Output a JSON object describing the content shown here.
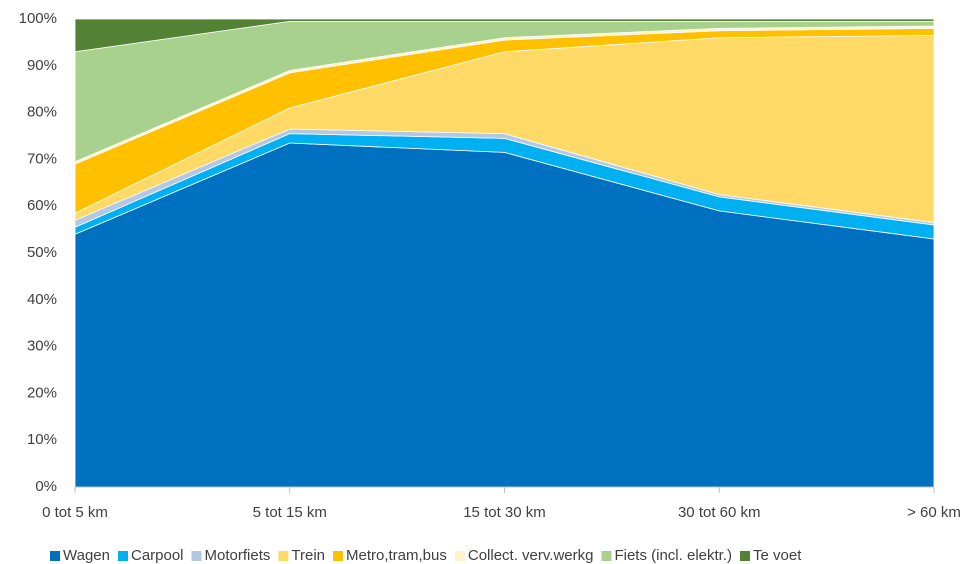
{
  "chart_data": {
    "type": "area",
    "stacked": true,
    "categories": [
      "0 tot 5 km",
      "5 tot 15 km",
      "15 tot 30 km",
      "30 tot 60 km",
      "> 60 km"
    ],
    "series": [
      {
        "name": "Wagen",
        "color": "#0070c0",
        "values": [
          54,
          73.5,
          71.5,
          59,
          53
        ]
      },
      {
        "name": "Carpool",
        "color": "#00b0f0",
        "values": [
          1.5,
          2,
          3,
          3,
          3
        ]
      },
      {
        "name": "Motorfiets",
        "color": "#b4c7e7",
        "values": [
          1.5,
          1,
          1,
          0.5,
          0.5
        ]
      },
      {
        "name": "Trein",
        "color": "#ffd966",
        "values": [
          1.5,
          4.5,
          17.5,
          33.5,
          40
        ]
      },
      {
        "name": "Metro,tram,bus",
        "color": "#ffc000",
        "values": [
          10.5,
          7.5,
          2.5,
          1.5,
          1.5
        ]
      },
      {
        "name": "Collect. verv.werkg",
        "color": "#fff2cc",
        "values": [
          0.5,
          0.5,
          0.5,
          0.5,
          0.5
        ]
      },
      {
        "name": "Fiets (incl. elektr.)",
        "color": "#a9d18e",
        "values": [
          23.5,
          10.5,
          3.5,
          1.5,
          1
        ]
      },
      {
        "name": "Te voet",
        "color": "#548235",
        "values": [
          7,
          0.5,
          0.5,
          0.5,
          0.5
        ]
      }
    ],
    "ylim": [
      0,
      100
    ],
    "yticks": [
      {
        "value": 0,
        "label": "0%"
      },
      {
        "value": 10,
        "label": "10%"
      },
      {
        "value": 20,
        "label": "20%"
      },
      {
        "value": 30,
        "label": "30%"
      },
      {
        "value": 40,
        "label": "40%"
      },
      {
        "value": 50,
        "label": "50%"
      },
      {
        "value": 60,
        "label": "60%"
      },
      {
        "value": 70,
        "label": "70%"
      },
      {
        "value": 80,
        "label": "80%"
      },
      {
        "value": 90,
        "label": "90%"
      },
      {
        "value": 100,
        "label": "100%"
      }
    ],
    "grid": false,
    "legend": "bottom"
  }
}
